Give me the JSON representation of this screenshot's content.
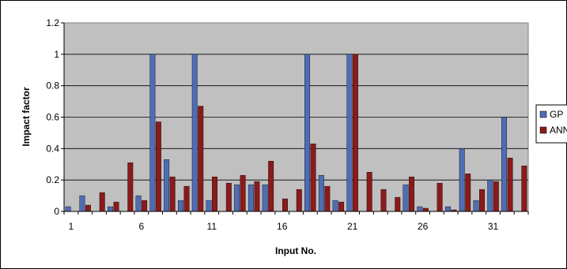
{
  "chart_data": {
    "type": "bar",
    "xlabel": "Input No.",
    "ylabel": "Impact factor",
    "ylim": [
      0,
      1.2
    ],
    "yticks": [
      "0",
      "0.2",
      "0.4",
      "0.6",
      "0.8",
      "1",
      "1.2"
    ],
    "categories": [
      1,
      2,
      3,
      4,
      5,
      6,
      7,
      8,
      9,
      10,
      11,
      12,
      13,
      14,
      15,
      16,
      17,
      18,
      19,
      20,
      21,
      22,
      23,
      24,
      25,
      26,
      27,
      28,
      29,
      30,
      31,
      32,
      33
    ],
    "xtick_labels": [
      "1",
      "6",
      "11",
      "16",
      "21",
      "26",
      "31"
    ],
    "grid": "horizontal",
    "legend_position": "right",
    "series": [
      {
        "name": "GP",
        "color": "#4f6db4",
        "values": [
          0.03,
          0.1,
          0,
          0.03,
          0,
          0.1,
          1.0,
          0.33,
          0.07,
          1.0,
          0.07,
          0,
          0.17,
          0.17,
          0.17,
          0,
          0,
          1.0,
          0.23,
          0.07,
          1.0,
          0,
          0,
          0,
          0.17,
          0.03,
          0,
          0.03,
          0.4,
          0.07,
          0.2,
          0.6,
          0
        ]
      },
      {
        "name": "ANN",
        "color": "#8b1a1a",
        "values": [
          0,
          0.04,
          0.12,
          0.06,
          0.31,
          0.07,
          0.57,
          0.22,
          0.16,
          0.67,
          0.22,
          0.18,
          0.23,
          0.19,
          0.32,
          0.08,
          0.14,
          0.43,
          0.16,
          0.06,
          1.0,
          0.25,
          0.14,
          0.09,
          0.22,
          0.02,
          0.18,
          0.01,
          0.24,
          0.14,
          0.19,
          0.34,
          0.29
        ]
      }
    ]
  }
}
